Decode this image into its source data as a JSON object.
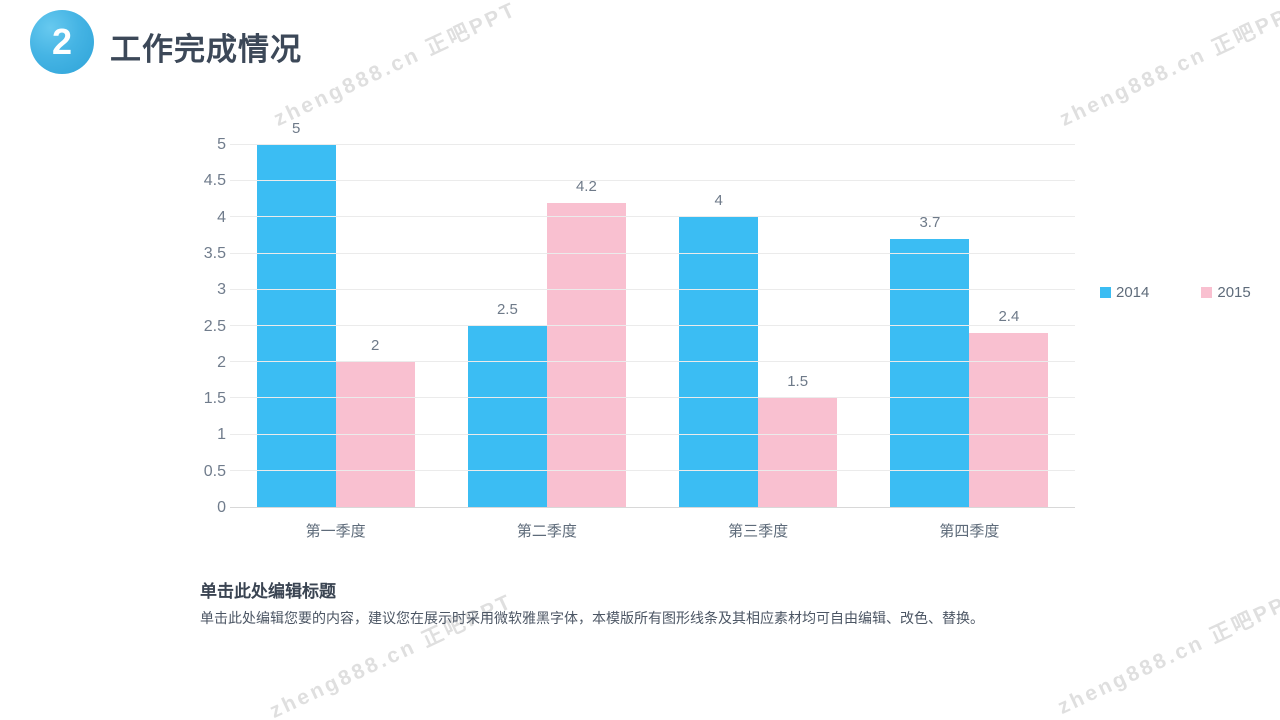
{
  "header": {
    "number": "2",
    "title": "工作完成情况"
  },
  "watermark": {
    "text": "zheng888.cn 正吧PPT"
  },
  "chart_data": {
    "type": "bar",
    "title": "",
    "categories": [
      "第一季度",
      "第二季度",
      "第三季度",
      "第四季度"
    ],
    "series": [
      {
        "name": "2014",
        "color": "#3bbdf3",
        "values": [
          5,
          2.5,
          4,
          3.7
        ]
      },
      {
        "name": "2015",
        "color": "#f9c0d0",
        "values": [
          2,
          4.2,
          1.5,
          2.4
        ]
      }
    ],
    "data_labels": true,
    "xlabel": "",
    "ylabel": "",
    "ylim": [
      0,
      5
    ],
    "yticks": [
      "0",
      "0.5",
      "1",
      "1.5",
      "2",
      "2.5",
      "3",
      "3.5",
      "4",
      "4.5",
      "5"
    ],
    "grid": true,
    "legend_position": "top-right"
  },
  "footer": {
    "title": "单击此处编辑标题",
    "body": "单击此处编辑您要的内容，建议您在展示时采用微软雅黑字体，本模版所有图形线条及其相应素材均可自由编辑、改色、替换。"
  }
}
